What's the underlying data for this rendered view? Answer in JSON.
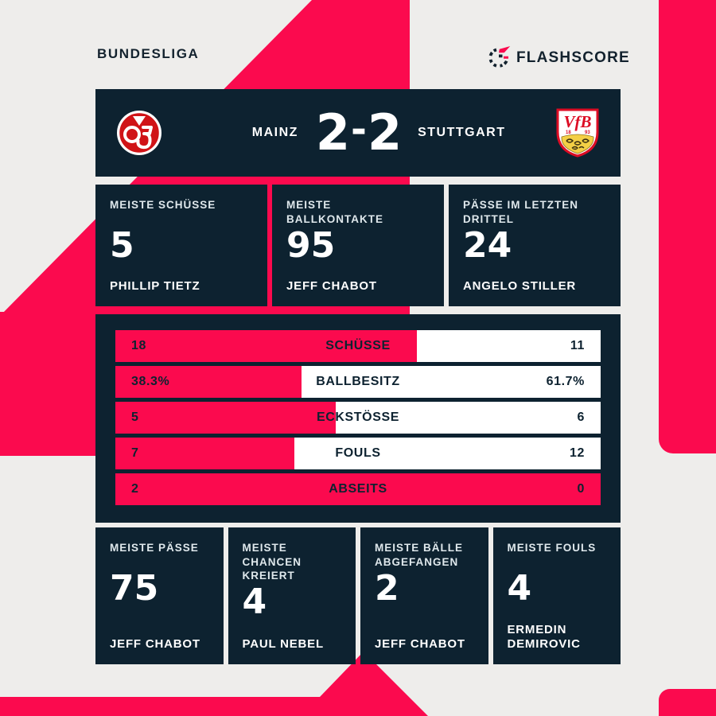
{
  "colors": {
    "accent_pink": "#fb0a4e",
    "panel_navy": "#0d2230",
    "background_gray": "#eeedeb",
    "bar_white": "#ffffff",
    "mainz_red": "#d01317",
    "stuttgart_red": "#dc0c24",
    "stuttgart_yellow": "#f3cf45"
  },
  "league": {
    "label": "BUNDESLIGA"
  },
  "brand": {
    "name": "FLASHSCORE",
    "icon": "flashscore-dashed-circle-with-red-flash"
  },
  "scoreboard": {
    "home_name": "MAINZ",
    "away_name": "STUTTGART",
    "score_home": "2",
    "score_separator": "-",
    "score_away": "2",
    "home_logo": "mainz-05-crest",
    "away_logo": "vfb-stuttgart-crest"
  },
  "top_stats": [
    {
      "label": "MEISTE SCHÜSSE",
      "value": "5",
      "player": "PHILLIP TIETZ"
    },
    {
      "label": "MEISTE BALLKONTAKTE",
      "value": "95",
      "player": "JEFF CHABOT"
    },
    {
      "label": "PÄSSE IM LETZTEN DRITTEL",
      "value": "24",
      "player": "ANGELO STILLER"
    }
  ],
  "match_stats": {
    "rows": [
      {
        "label": "SCHÜSSE",
        "home": "18",
        "away": "11"
      },
      {
        "label": "BALLBESITZ",
        "home": "38.3%",
        "away": "61.7%"
      },
      {
        "label": "ECKSTÖSSE",
        "home": "5",
        "away": "6"
      },
      {
        "label": "FOULS",
        "home": "7",
        "away": "12"
      },
      {
        "label": "ABSEITS",
        "home": "2",
        "away": "0"
      }
    ]
  },
  "bottom_stats": [
    {
      "label": "MEISTE PÄSSE",
      "value": "75",
      "player": "JEFF CHABOT"
    },
    {
      "label": "MEISTE CHANCEN KREIERT",
      "value": "4",
      "player": "PAUL NEBEL"
    },
    {
      "label": "MEISTE BÄLLE ABGEFANGEN",
      "value": "2",
      "player": "JEFF CHABOT"
    },
    {
      "label": "MEISTE FOULS",
      "value": "4",
      "player": "ERMEDIN DEMIROVIC"
    }
  ],
  "chart_data": {
    "type": "bar",
    "title": "Mainz 2-2 Stuttgart — match statistics",
    "orientation": "horizontal-diverging",
    "categories": [
      "SCHÜSSE",
      "BALLBESITZ",
      "ECKSTÖSSE",
      "FOULS",
      "ABSEITS"
    ],
    "series": [
      {
        "name": "Mainz",
        "values": [
          18,
          38.3,
          5,
          7,
          2
        ]
      },
      {
        "name": "Stuttgart",
        "values": [
          11,
          61.7,
          6,
          12,
          0
        ]
      }
    ],
    "value_labels": {
      "home": [
        "18",
        "38.3%",
        "5",
        "7",
        "2"
      ],
      "away": [
        "11",
        "61.7%",
        "6",
        "12",
        "0"
      ]
    },
    "legend_position": "none",
    "grid": false,
    "note": "each bar filled pink from left proportional to home/(home+away)"
  }
}
